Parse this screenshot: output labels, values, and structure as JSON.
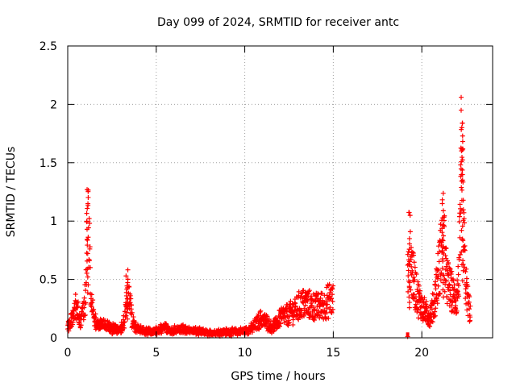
{
  "chart_data": {
    "type": "scatter",
    "title": "Day 099 of 2024, SRMTID for receiver antc",
    "xlabel": "GPS time / hours",
    "ylabel": "SRMTID / TECUs",
    "xlim": [
      0,
      24
    ],
    "ylim": [
      0,
      2.5
    ],
    "x_ticks": [
      0,
      5,
      10,
      15,
      20
    ],
    "y_ticks": [
      0,
      0.5,
      1,
      1.5,
      2,
      2.5
    ],
    "x_tick_labels": [
      "0",
      "5",
      "10",
      "15",
      "20"
    ],
    "y_tick_labels": [
      "0",
      "0.5",
      "1",
      "1.5",
      "2",
      "2.5"
    ],
    "grid": true,
    "marker": "plus",
    "marker_color": "#ff0000",
    "series": [
      {
        "name": "SRMTID",
        "profile": [
          [
            0.0,
            0.1
          ],
          [
            0.2,
            0.15
          ],
          [
            0.35,
            0.22
          ],
          [
            0.5,
            0.28
          ],
          [
            0.6,
            0.2
          ],
          [
            0.75,
            0.15
          ],
          [
            0.9,
            0.25
          ],
          [
            1.0,
            0.35
          ],
          [
            1.05,
            0.6
          ],
          [
            1.12,
            1.15
          ],
          [
            1.2,
            0.85
          ],
          [
            1.3,
            0.45
          ],
          [
            1.4,
            0.25
          ],
          [
            1.5,
            0.14
          ],
          [
            1.8,
            0.12
          ],
          [
            2.1,
            0.1
          ],
          [
            2.5,
            0.08
          ],
          [
            2.9,
            0.07
          ],
          [
            3.1,
            0.1
          ],
          [
            3.25,
            0.18
          ],
          [
            3.4,
            0.45
          ],
          [
            3.5,
            0.3
          ],
          [
            3.65,
            0.15
          ],
          [
            3.9,
            0.08
          ],
          [
            4.2,
            0.06
          ],
          [
            4.8,
            0.05
          ],
          [
            5.2,
            0.07
          ],
          [
            5.5,
            0.1
          ],
          [
            5.8,
            0.06
          ],
          [
            6.5,
            0.07
          ],
          [
            7.0,
            0.06
          ],
          [
            7.5,
            0.05
          ],
          [
            8.0,
            0.04
          ],
          [
            8.5,
            0.05
          ],
          [
            9.0,
            0.05
          ],
          [
            9.5,
            0.05
          ],
          [
            10.0,
            0.06
          ],
          [
            10.4,
            0.08
          ],
          [
            10.65,
            0.12
          ],
          [
            10.9,
            0.16
          ],
          [
            11.2,
            0.14
          ],
          [
            11.5,
            0.09
          ],
          [
            11.8,
            0.12
          ],
          [
            12.0,
            0.18
          ],
          [
            12.5,
            0.2
          ],
          [
            13.0,
            0.26
          ],
          [
            13.3,
            0.3
          ],
          [
            13.6,
            0.28
          ],
          [
            14.0,
            0.26
          ],
          [
            14.5,
            0.28
          ],
          [
            14.8,
            0.33
          ],
          [
            15.0,
            0.32
          ]
        ],
        "profile_2": [
          [
            19.25,
            0.8
          ],
          [
            19.35,
            0.72
          ],
          [
            19.45,
            0.58
          ],
          [
            19.6,
            0.45
          ],
          [
            19.75,
            0.36
          ],
          [
            19.9,
            0.3
          ],
          [
            20.1,
            0.24
          ],
          [
            20.3,
            0.2
          ],
          [
            20.45,
            0.18
          ],
          [
            20.6,
            0.25
          ],
          [
            20.7,
            0.3
          ],
          [
            20.8,
            0.42
          ],
          [
            20.95,
            0.55
          ],
          [
            21.1,
            0.75
          ],
          [
            21.2,
            0.95
          ],
          [
            21.35,
            0.55
          ],
          [
            21.5,
            0.45
          ],
          [
            21.65,
            0.4
          ],
          [
            21.8,
            0.35
          ],
          [
            21.95,
            0.32
          ],
          [
            22.05,
            0.45
          ],
          [
            22.15,
            0.8
          ],
          [
            22.22,
            1.2
          ],
          [
            22.28,
            1.45
          ],
          [
            22.35,
            0.9
          ],
          [
            22.45,
            0.55
          ],
          [
            22.55,
            0.35
          ],
          [
            22.65,
            0.28
          ],
          [
            22.75,
            0.2
          ]
        ],
        "gap_points": [
          [
            19.2,
            0.0
          ]
        ]
      }
    ],
    "annotations": [
      {
        "x": 1.1,
        "y": 1.27
      },
      {
        "x": 3.35,
        "y": 0.53
      },
      {
        "x": 19.25,
        "y": 0.85
      },
      {
        "x": 21.2,
        "y": 1.15
      },
      {
        "x": 22.25,
        "y": 2.06
      },
      {
        "x": 22.3,
        "y": 1.61
      }
    ]
  }
}
